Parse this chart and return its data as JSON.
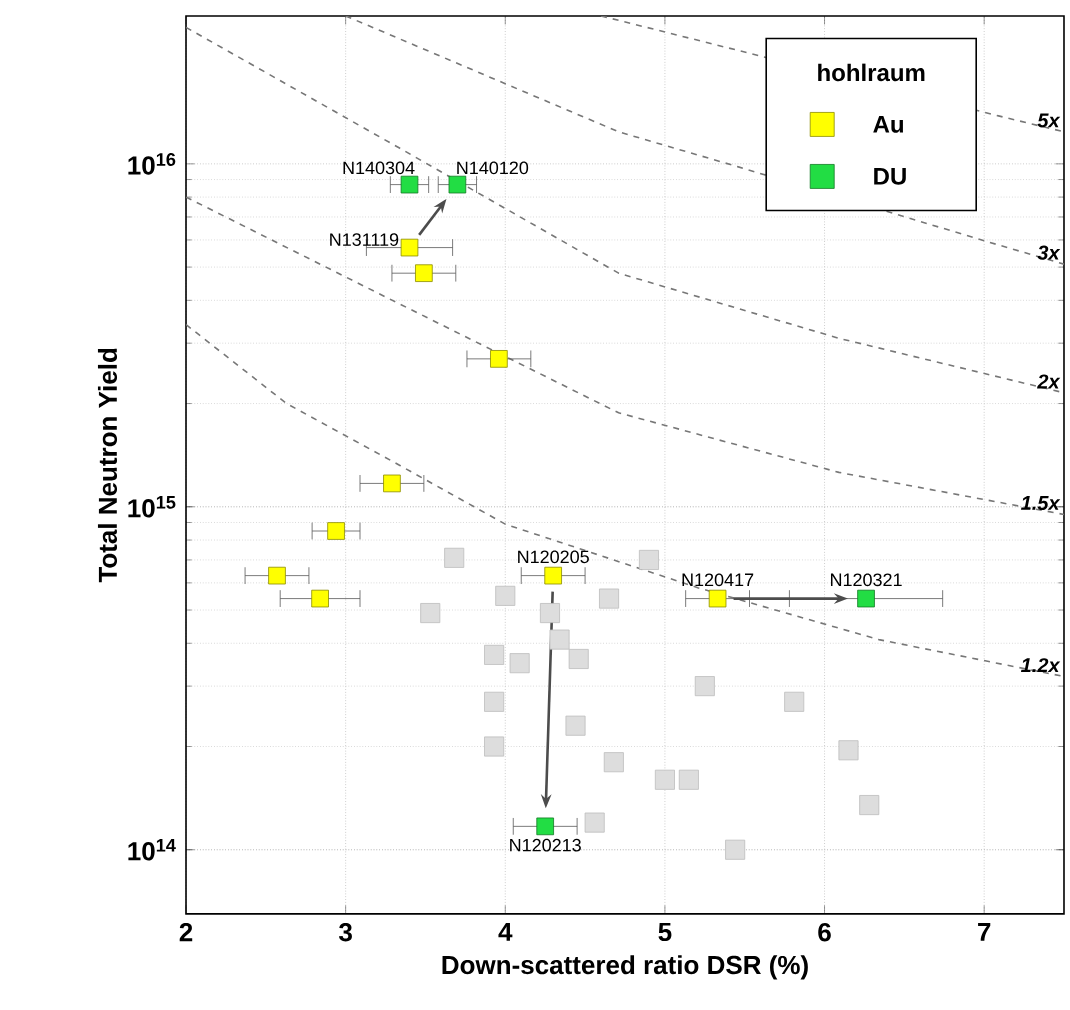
{
  "chart_data": {
    "type": "scatter",
    "xlabel": "Down-scattered ratio DSR (%)",
    "ylabel": "Total Neutron Yield",
    "legend_title": "hohlraum",
    "xlim": [
      2,
      7.5
    ],
    "xticks": [
      2,
      3,
      4,
      5,
      6,
      7
    ],
    "ylim": [
      65000000000000.0,
      2.7e+16
    ],
    "yticks": [
      {
        "value": 100000000000000.0,
        "label": "10$^{14}$"
      },
      {
        "value": 1000000000000000.0,
        "label": "10$^{15}$"
      },
      {
        "value": 1e+16,
        "label": "10$^{16}$"
      }
    ],
    "log": "y",
    "grid": true,
    "legend": "top right",
    "marker": "square",
    "series": [
      {
        "color": "#dddddd",
        "x": [
          3.68,
          4.0,
          3.53,
          4.9,
          4.65,
          3.93,
          4.09,
          4.46,
          4.34,
          3.93,
          4.44,
          3.93,
          4.68,
          5.0,
          5.15,
          5.25,
          5.81,
          6.15,
          6.28,
          5.44,
          4.56,
          4.28
        ],
        "values": [
          710000000000000.0,
          550000000000000.0,
          490000000000000.0,
          700000000000000.0,
          540000000000000.0,
          370000000000000.0,
          350000000000000.0,
          360000000000000.0,
          410000000000000.0,
          270000000000000.0,
          230000000000000.0,
          200000000000000.0,
          180000000000000.0,
          160000000000000.0,
          160000000000000.0,
          300000000000000.0,
          270000000000000.0,
          195000000000000.0,
          135000000000000.0,
          100000000000000.0,
          120000000000000.0,
          490000000000000.0
        ]
      },
      {
        "type": "line",
        "name": "5x",
        "color": "#777777",
        "marker": "none",
        "line_style": "dashed",
        "x": [
          4.6,
          7.09,
          7.5
        ],
        "values": [
          2.7e+16,
          1.38e+16,
          1.24e+16
        ]
      },
      {
        "type": "line",
        "name": "3x",
        "color": "#777777",
        "marker": "none",
        "line_style": "dashed",
        "x": [
          3.0,
          4.71,
          5.46,
          7.09,
          7.5
        ],
        "values": [
          2.7e+16,
          1.24e+16,
          9800000000000000.0,
          5800000000000000.0,
          5100000000000000.0
        ]
      },
      {
        "type": "line",
        "name": "2x",
        "color": "#777777",
        "marker": "none",
        "line_style": "dashed",
        "x": [
          2.0,
          3.34,
          4.71,
          6.09,
          7.5
        ],
        "values": [
          2.5e+16,
          1.11e+16,
          4800000000000000.0,
          3100000000000000.0,
          2150000000000000.0
        ]
      },
      {
        "type": "line",
        "name": "1.5x",
        "color": "#777777",
        "marker": "none",
        "line_style": "dashed",
        "x": [
          2.0,
          3.34,
          4.71,
          6.09,
          7.5
        ],
        "values": [
          8000000000000000.0,
          3900000000000000.0,
          1880000000000000.0,
          1260000000000000.0,
          950000000000000.0
        ]
      },
      {
        "type": "line",
        "name": "1.2x",
        "color": "#777777",
        "marker": "none",
        "line_style": "dashed",
        "x": [
          2.0,
          2.63,
          3.34,
          4.0,
          5.21,
          6.34,
          7.5
        ],
        "values": [
          3400000000000000.0,
          2000000000000000.0,
          1320000000000000.0,
          890000000000000.0,
          580000000000000.0,
          410000000000000.0,
          320000000000000.0
        ]
      },
      {
        "name": "Au",
        "color": "#ffff00",
        "x": [
          3.4,
          3.49,
          3.96,
          3.29,
          2.94,
          2.57,
          2.84,
          4.3,
          5.33
        ],
        "values": [
          5700000000000000.0,
          4800000000000000.0,
          2700000000000000.0,
          1170000000000000.0,
          850000000000000.0,
          630000000000000.0,
          540000000000000.0,
          630000000000000.0,
          540000000000000.0
        ],
        "xerrors": [
          0.27,
          0.2,
          0.2,
          0.2,
          0.15,
          0.2,
          0.25,
          0.2,
          0.2
        ]
      },
      {
        "name": "DU",
        "color": "#22dd44",
        "x": [
          3.4,
          3.7,
          6.26,
          4.25
        ],
        "values": [
          8700000000000000.0,
          8700000000000000.0,
          540000000000000.0,
          117000000000000.0
        ],
        "xerrors": [
          0.12,
          0.12,
          0.48,
          0.2
        ]
      }
    ],
    "annotations": [
      {
        "text": "N140304",
        "x": 3.4,
        "y": 8700000000000000.0
      },
      {
        "text": "N140120",
        "x": 3.7,
        "y": 8700000000000000.0
      },
      {
        "text": "N131119",
        "x": 3.4,
        "y": 5700000000000000.0
      },
      {
        "text": "N120205",
        "x": 4.3,
        "y": 630000000000000.0
      },
      {
        "text": "N120417",
        "x": 5.33,
        "y": 540000000000000.0
      },
      {
        "text": "N120321",
        "x": 6.26,
        "y": 540000000000000.0
      },
      {
        "text": "N120213",
        "x": 4.25,
        "y": 117000000000000.0
      }
    ]
  }
}
